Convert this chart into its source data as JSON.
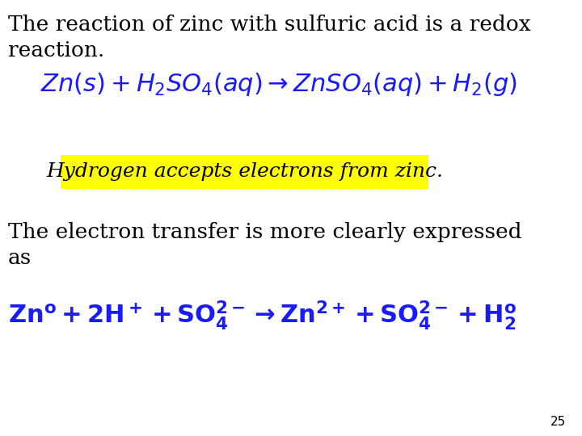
{
  "background_color": "#ffffff",
  "text1_line1": "The reaction of zinc with sulfuric acid is a redox",
  "text1_line2": "reaction.",
  "text1_color": "#000000",
  "text1_fontsize": 19,
  "eq1": "$\\mathit{Zn(s) + H_2SO_4(aq) \\rightarrow ZnSO_4(aq) + H_2(g)}$",
  "eq1_color": "#1a1aff",
  "eq1_fontsize": 22,
  "highlight_color": "#ffff00",
  "highlight_text": "Hydrogen accepts electrons from zinc.",
  "highlight_text_color": "#000000",
  "highlight_text_fontsize": 18,
  "text2_line1": "The electron transfer is more clearly expressed",
  "text2_line2": "as",
  "text2_color": "#000000",
  "text2_fontsize": 19,
  "eq2": "$\\mathbf{Zn^o + 2H^+ + SO_4^{2-} \\rightarrow Zn^{2+} + SO_4^{2-} + H_2^o}$",
  "eq2_color": "#1a1aff",
  "eq2_fontsize": 22,
  "page_number": "25",
  "page_num_fontsize": 11,
  "page_num_color": "#000000"
}
